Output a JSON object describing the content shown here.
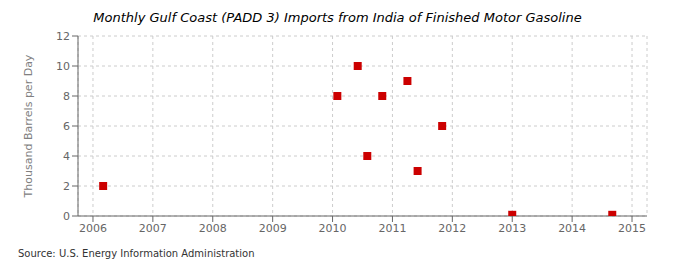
{
  "chart_data": {
    "type": "scatter",
    "title": "Monthly Gulf Coast (PADD 3) Imports from India of Finished Motor Gasoline",
    "y_label": "Thousand Barrels per Day",
    "annotation": "Source: U.S. Energy Information Administration",
    "x": [
      2006.17,
      2010.08,
      2010.42,
      2010.58,
      2010.83,
      2011.25,
      2011.42,
      2011.83,
      2013.0,
      2014.67
    ],
    "values": [
      2,
      8,
      10,
      4,
      8,
      9,
      3,
      6,
      0.08,
      0.08
    ],
    "color": "#cc0000",
    "marker": "square",
    "xlim": [
      2005.75,
      2015.25
    ],
    "ylim": [
      0,
      12
    ],
    "xticks": [
      2006,
      2007,
      2008,
      2009,
      2010,
      2011,
      2012,
      2013,
      2014,
      2015
    ],
    "yticks": [
      0,
      2,
      4,
      6,
      8,
      10,
      12
    ],
    "grid": true
  }
}
